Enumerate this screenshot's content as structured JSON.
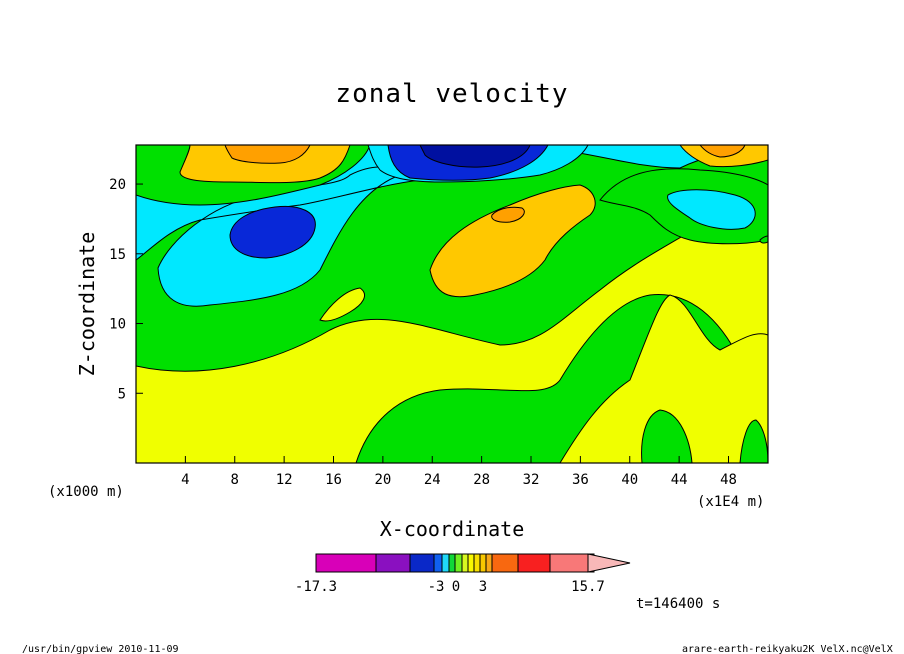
{
  "chart_data": {
    "type": "contour",
    "title": "zonal velocity",
    "xlabel": "X-coordinate",
    "ylabel": "Z-coordinate",
    "x_unit": "(x1E4 m)",
    "y_unit": "(x1000 m)",
    "x_ticks": [
      4,
      8,
      12,
      16,
      20,
      24,
      28,
      32,
      36,
      40,
      44,
      48
    ],
    "y_ticks": [
      5,
      10,
      15,
      20
    ],
    "xlim": [
      0,
      51.2
    ],
    "ylim": [
      0,
      22.8
    ],
    "colorbar": {
      "tick_labels": [
        "-17.3",
        "-3",
        "0",
        "3",
        "15.7"
      ],
      "tick_values": [
        -17.3,
        -3,
        0,
        3,
        15.7
      ],
      "colors": [
        "#d800b8",
        "#8a10c0",
        "#0a28c8",
        "#1060f0",
        "#20d8f8",
        "#10d838",
        "#70f020",
        "#d8f820",
        "#f8f800",
        "#f8e000",
        "#f8c800",
        "#f8a818",
        "#f86810",
        "#f82020",
        "#f87878",
        "#f8b8b8"
      ],
      "colors_shown": "magenta to blue (negative), cyan/green/yellow (near zero), orange to red to pink (positive)"
    },
    "time_label": "t=146400 s"
  },
  "footer": {
    "left": "/usr/bin/gpview   2010-11-09",
    "right": "arare-earth-reikyaku2K_VelX.nc@VelX"
  },
  "colors": {
    "green": "#00e000",
    "yellow": "#f0ff00",
    "cyan": "#00e8ff",
    "blue": "#0828d8",
    "darkblue": "#0010a0",
    "orange1": "#ffc800",
    "orange2": "#ffa000"
  }
}
